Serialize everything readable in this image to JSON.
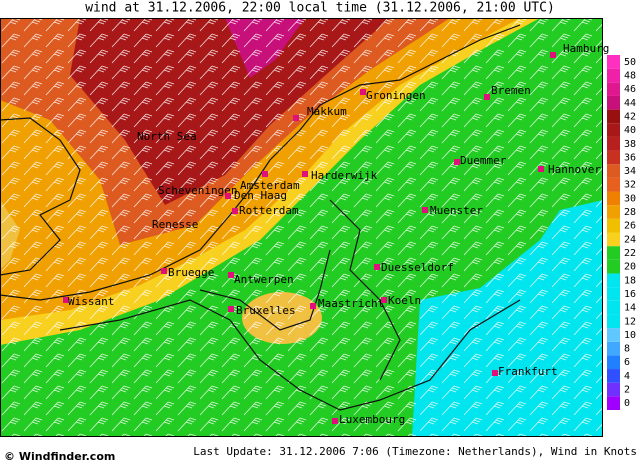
{
  "header": {
    "title": "wind at 31.12.2006, 22:00 local time (31.12.2006, 21:00 UTC)"
  },
  "map": {
    "labels": [
      "Hamburg",
      "Bremen",
      "Groningen",
      "Makkum",
      "North Sea",
      "Duemmer",
      "Hannover",
      "Harderwijk",
      "Amsterdam",
      "Scheveningen",
      "Den Haag",
      "Rotterdam",
      "Muenster",
      "Renesse",
      "Duesseldorf",
      "Bruegge",
      "Antwerpen",
      "Wissant",
      "Maastricht",
      "Koeln",
      "Bruxelles",
      "Frankfurt",
      "Luxembourg"
    ]
  },
  "legend": {
    "ticks": [
      0,
      2,
      4,
      6,
      8,
      10,
      12,
      14,
      16,
      18,
      20,
      22,
      24,
      26,
      28,
      30,
      32,
      34,
      36,
      38,
      40,
      42,
      44,
      46,
      48,
      50
    ]
  },
  "footer": {
    "logo": "© Windfinder.com",
    "update": "Last Update: 31.12.2006 7:06 (Timezone: Netherlands), Wind in Knots"
  }
}
